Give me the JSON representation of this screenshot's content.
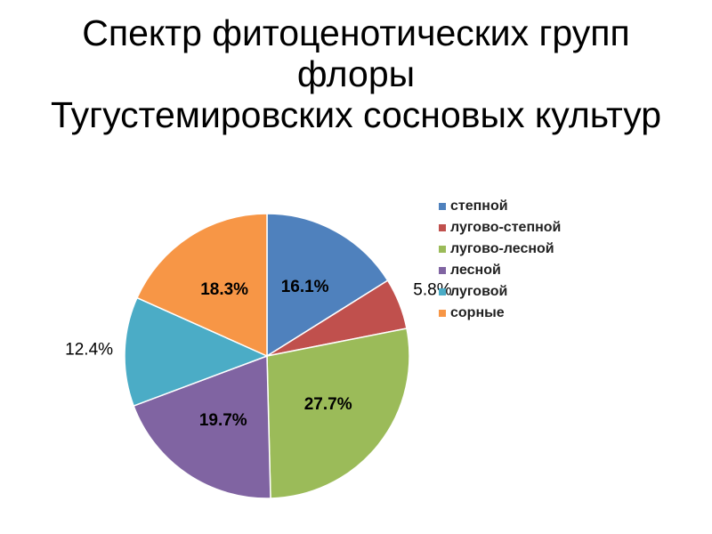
{
  "chart_data": {
    "type": "pie",
    "title": "Спектр фитоценотических групп флоры\nТугустемировских сосновых культур",
    "categories": [
      "степной",
      "лугово-степной",
      "лугово-лесной",
      "лесной",
      "луговой",
      "сорные"
    ],
    "values": [
      16.1,
      5.8,
      27.7,
      19.7,
      12.4,
      18.3
    ],
    "value_labels": [
      "16.1%",
      "5.8%",
      "27.7%",
      "19.7%",
      "12.4%",
      "18.3%"
    ],
    "colors": [
      "#4f81bd",
      "#c0504d",
      "#9bbb59",
      "#8064a2",
      "#4bacc6",
      "#f79646"
    ],
    "legend": "right"
  }
}
